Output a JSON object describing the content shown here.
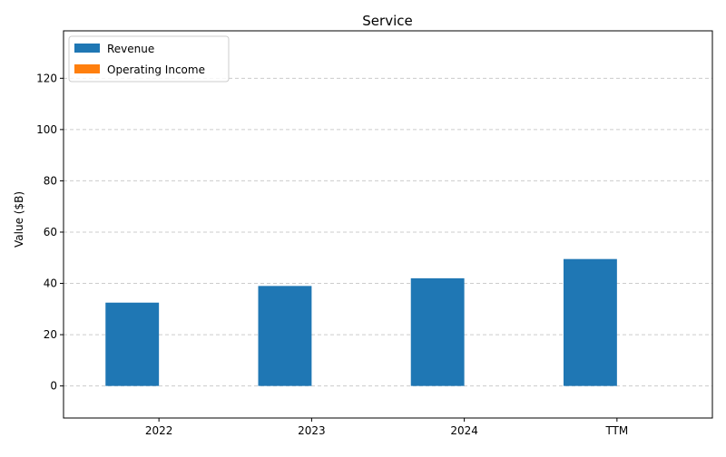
{
  "chart_data": {
    "type": "bar",
    "title": "Service",
    "xlabel": "",
    "ylabel": "Value ($B)",
    "categories": [
      "2022",
      "2023",
      "2024",
      "TTM"
    ],
    "series": [
      {
        "name": "Revenue",
        "values": [
          32.5,
          39.0,
          42.0,
          49.5
        ],
        "color": "#1f77b4"
      },
      {
        "name": "Operating Income",
        "values": [
          0,
          0,
          0,
          0
        ],
        "color": "#ff7f0e"
      }
    ],
    "ylim": [
      -12.5,
      138.5
    ],
    "yticks": [
      0,
      20,
      40,
      60,
      80,
      100,
      120
    ],
    "grid": true,
    "legend_position": "top-left"
  }
}
